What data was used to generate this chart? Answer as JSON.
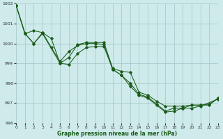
{
  "xlabel": "Graphe pression niveau de la mer (hPa)",
  "ylim": [
    996,
    1002
  ],
  "xlim": [
    0,
    23
  ],
  "yticks": [
    996,
    997,
    998,
    999,
    1000,
    1001,
    1002
  ],
  "xticks": [
    0,
    1,
    2,
    3,
    4,
    5,
    6,
    7,
    8,
    9,
    10,
    11,
    12,
    13,
    14,
    15,
    16,
    17,
    18,
    19,
    20,
    21,
    22,
    23
  ],
  "bg_color": "#ceeaea",
  "grid_color": "#aacccc",
  "line_color": "#1a5c1a",
  "line_a_x": [
    0,
    1,
    2,
    3,
    4,
    5,
    6,
    7,
    8,
    9,
    10,
    11,
    12,
    13,
    14,
    15,
    16,
    17,
    18,
    19,
    20,
    21,
    22,
    23
  ],
  "line_a_y": [
    1001.9,
    1000.5,
    1000.65,
    1000.55,
    1000.25,
    999.0,
    999.3,
    999.95,
    1000.05,
    1000.05,
    1000.05,
    998.75,
    998.6,
    998.55,
    997.55,
    997.4,
    997.1,
    996.85,
    996.85,
    996.85,
    996.9,
    996.9,
    996.9,
    997.25
  ],
  "line_b_x": [
    0,
    1,
    2,
    3,
    4,
    5,
    6,
    7,
    8,
    9,
    10,
    11,
    12,
    13,
    14,
    15,
    16,
    17,
    18,
    19,
    20,
    21,
    22,
    23
  ],
  "line_b_y": [
    1001.9,
    1000.5,
    1000.0,
    1000.55,
    999.8,
    999.1,
    999.6,
    999.9,
    1000.0,
    1000.0,
    999.95,
    998.7,
    998.4,
    998.0,
    997.45,
    997.3,
    996.95,
    996.6,
    996.75,
    996.75,
    996.9,
    996.9,
    996.95,
    997.25
  ],
  "line_c_x": [
    0,
    1,
    2,
    3,
    5,
    6,
    7,
    8,
    9,
    10,
    11,
    12,
    13,
    14,
    15,
    16,
    17,
    18,
    19,
    20,
    21,
    23
  ],
  "line_c_y": [
    1001.9,
    1000.5,
    1000.0,
    1000.5,
    999.0,
    998.95,
    999.5,
    999.8,
    999.85,
    999.85,
    998.7,
    998.4,
    997.85,
    997.4,
    997.25,
    996.9,
    996.55,
    996.6,
    996.75,
    996.75,
    996.85,
    997.2
  ]
}
